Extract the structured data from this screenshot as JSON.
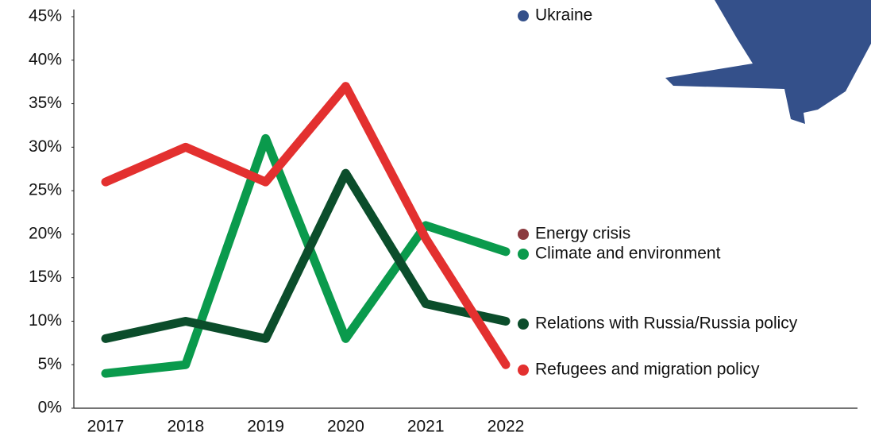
{
  "chart_data": {
    "type": "line",
    "categories": [
      "2017",
      "2018",
      "2019",
      "2020",
      "2021",
      "2022"
    ],
    "series": [
      {
        "name": "Ukraine",
        "color": "#34508a",
        "values": [
          null,
          null,
          null,
          null,
          null,
          null
        ]
      },
      {
        "name": "Energy crisis",
        "color": "#8b3a3f",
        "values": [
          null,
          null,
          null,
          null,
          null,
          null
        ]
      },
      {
        "name": "Climate and environment",
        "color": "#0a9a4c",
        "values": [
          4,
          5,
          31,
          8,
          21,
          18
        ]
      },
      {
        "name": "Relations with Russia/Russia policy",
        "color": "#0b4d2b",
        "values": [
          8,
          10,
          8,
          27,
          12,
          10
        ]
      },
      {
        "name": "Refugees and migration policy",
        "color": "#e3302f",
        "values": [
          26,
          30,
          26,
          37,
          19.5,
          5
        ]
      }
    ],
    "ylim": [
      0,
      45
    ],
    "yticks": [
      {
        "value": 0,
        "label": "0%"
      },
      {
        "value": 5,
        "label": "5%"
      },
      {
        "value": 10,
        "label": "10%"
      },
      {
        "value": 15,
        "label": "15%"
      },
      {
        "value": 20,
        "label": "20%"
      },
      {
        "value": 25,
        "label": "25%"
      },
      {
        "value": 30,
        "label": "30%"
      },
      {
        "value": 35,
        "label": "35%"
      },
      {
        "value": 40,
        "label": "40%"
      },
      {
        "value": 45,
        "label": "45%"
      }
    ],
    "grid": false
  }
}
